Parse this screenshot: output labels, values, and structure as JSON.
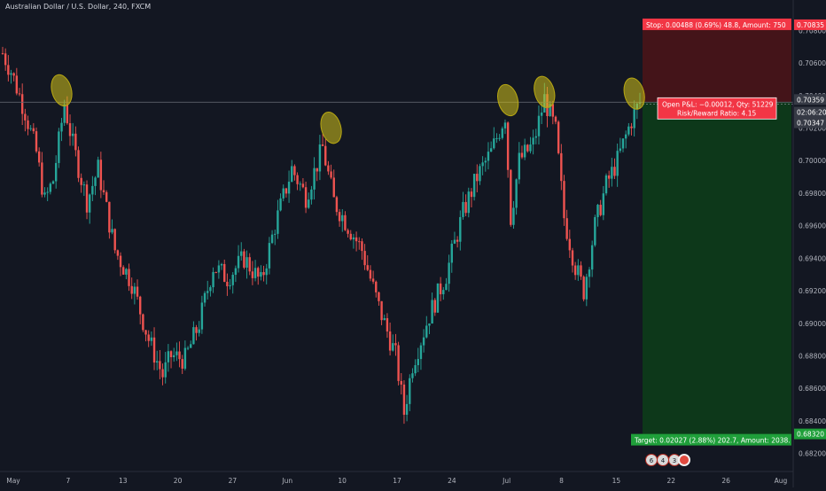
{
  "header": {
    "title": "Australian Dollar / U.S. Dollar, 240, FXCM"
  },
  "colors": {
    "background": "#131722",
    "up": "#26a69a",
    "down": "#ef5350",
    "stop_zone": "#4a1418",
    "target_zone": "#0d3a1a",
    "stop_badge": "#f23645",
    "target_badge": "#1f9f3a",
    "highlight": "#d4c21a"
  },
  "chart_data": {
    "type": "candlestick",
    "title": "Australian Dollar / U.S. Dollar, 240, FXCM",
    "ylim": [
      0.681,
      0.709
    ],
    "y_ticks": [
      "0.70800",
      "0.70600",
      "0.70400",
      "0.70200",
      "0.70000",
      "0.69800",
      "0.69600",
      "0.69400",
      "0.69200",
      "0.69000",
      "0.68800",
      "0.68600",
      "0.68400",
      "0.68200"
    ],
    "x_ticks": [
      "May",
      "7",
      "13",
      "20",
      "27",
      "Jun",
      "10",
      "17",
      "24",
      "Jul",
      "8",
      "15",
      "22",
      "26",
      "Aug"
    ],
    "price_path": [
      [
        0,
        0.7066
      ],
      [
        3,
        0.7055
      ],
      [
        8,
        0.703
      ],
      [
        12,
        0.7005
      ],
      [
        15,
        0.6975
      ],
      [
        18,
        0.6988
      ],
      [
        22,
        0.7035
      ],
      [
        25,
        0.701
      ],
      [
        30,
        0.6975
      ],
      [
        34,
        0.6995
      ],
      [
        40,
        0.6945
      ],
      [
        46,
        0.6925
      ],
      [
        52,
        0.689
      ],
      [
        57,
        0.6868
      ],
      [
        60,
        0.688
      ],
      [
        65,
        0.6878
      ],
      [
        70,
        0.69
      ],
      [
        75,
        0.6935
      ],
      [
        80,
        0.6928
      ],
      [
        86,
        0.694
      ],
      [
        92,
        0.6925
      ],
      [
        97,
        0.696
      ],
      [
        103,
        0.6995
      ],
      [
        108,
        0.6978
      ],
      [
        114,
        0.7008
      ],
      [
        118,
        0.6975
      ],
      [
        123,
        0.696
      ],
      [
        128,
        0.6945
      ],
      [
        134,
        0.691
      ],
      [
        140,
        0.688
      ],
      [
        143,
        0.6845
      ],
      [
        146,
        0.6875
      ],
      [
        152,
        0.6905
      ],
      [
        158,
        0.693
      ],
      [
        164,
        0.6968
      ],
      [
        169,
        0.699
      ],
      [
        174,
        0.7005
      ],
      [
        179,
        0.7028
      ],
      [
        181,
        0.6965
      ],
      [
        184,
        0.7
      ],
      [
        189,
        0.701
      ],
      [
        193,
        0.7038
      ],
      [
        197,
        0.7018
      ],
      [
        200,
        0.6965
      ],
      [
        204,
        0.6935
      ],
      [
        207,
        0.692
      ],
      [
        211,
        0.696
      ],
      [
        215,
        0.6985
      ],
      [
        219,
        0.7
      ],
      [
        224,
        0.7025
      ],
      [
        227,
        0.7036
      ]
    ],
    "series_range": [
      0,
      227
    ],
    "highlight_points": [
      {
        "x": 21,
        "y": 0.7041
      },
      {
        "x": 117,
        "y": 0.7018
      },
      {
        "x": 180,
        "y": 0.7035
      },
      {
        "x": 193,
        "y": 0.704
      },
      {
        "x": 225,
        "y": 0.7039
      }
    ],
    "position": {
      "entry": 0.70359,
      "stop": 0.70835,
      "target": 0.6832,
      "current": 0.70347,
      "start_index": 227
    },
    "price_labels": {
      "stop": "0.70835",
      "entry": "0.70359",
      "timer": "02:06:20",
      "current": "0.70347",
      "target": "0.68320"
    },
    "labels": {
      "stop": "Stop: 0.00488 (0.69%) 48.8, Amount: 750",
      "open_pnl": "Open P&L: −0.00012, Qty: 51229",
      "risk_reward": "Risk/Reward Ratio: 4.15",
      "target": "Target: 0.02027 (2.88%) 202.7, Amount: 2038."
    },
    "events": [
      "6",
      "4",
      "3"
    ]
  }
}
